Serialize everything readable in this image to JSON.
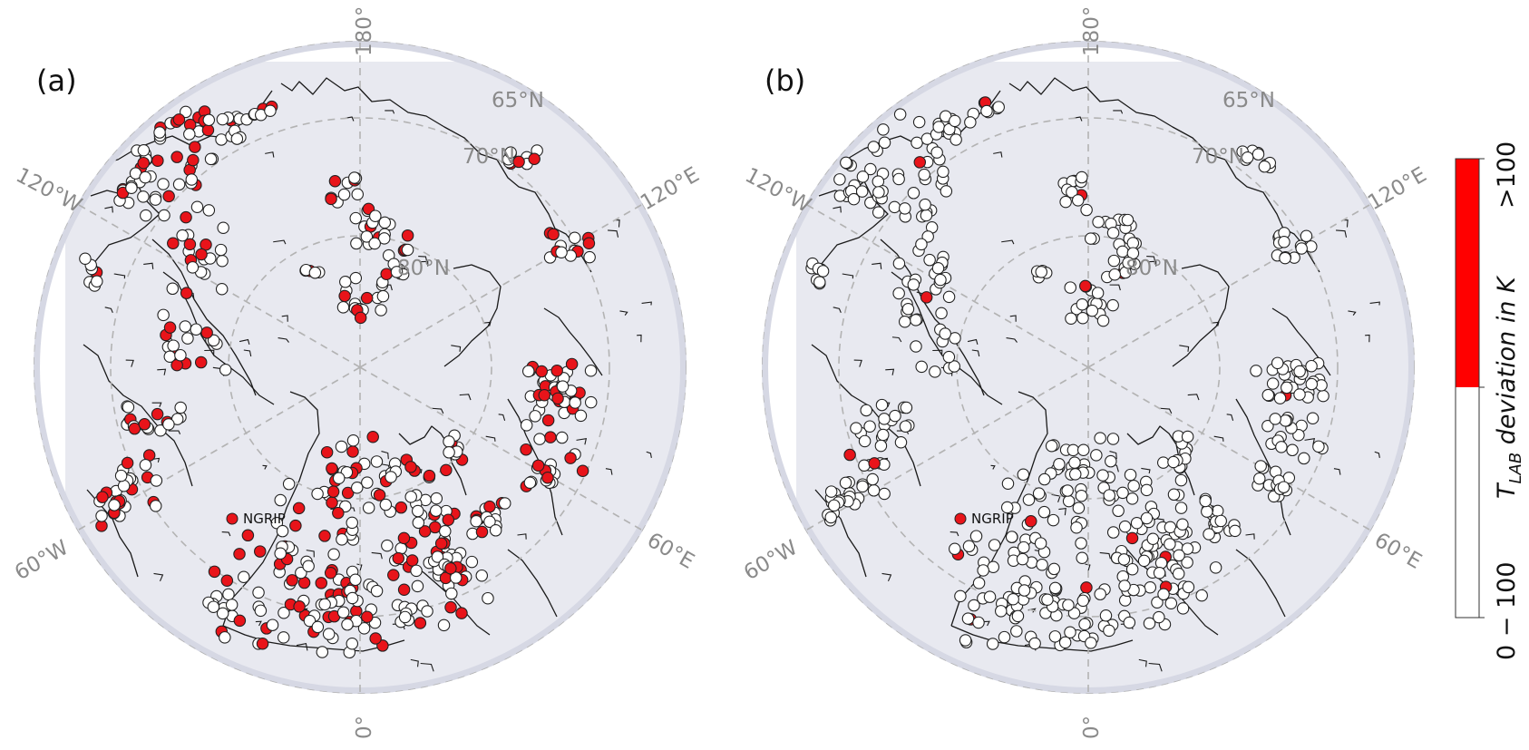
{
  "panels": [
    {
      "label": "(a)",
      "lat_labels": [
        "65°N",
        "70°N",
        "80°N"
      ],
      "lon_labels": {
        "top": "180°",
        "bottom": "0°",
        "upper_left": "120°W",
        "upper_right": "120°E",
        "lower_left": "60°W",
        "lower_right": "60°E"
      },
      "ngrip_label": "NGRIP",
      "red_share": 0.32
    },
    {
      "label": "(b)",
      "lat_labels": [
        "65°N",
        "70°N",
        "80°N"
      ],
      "lon_labels": {
        "top": "180°",
        "bottom": "0°",
        "upper_left": "120°W",
        "upper_right": "120°E",
        "lower_left": "60°W",
        "lower_right": "60°E"
      },
      "ngrip_label": "NGRIP",
      "red_share": 0.03
    }
  ],
  "colorbar": {
    "title_var": "T",
    "title_sub": "LAB",
    "title_rest": " deviation in K",
    "categories": [
      {
        "label": "0 − 100",
        "color": "#ffffff"
      },
      {
        "label": ">100",
        "color": "#ff0000"
      }
    ]
  },
  "colors": {
    "map_bg": "#e8e9f0",
    "map_rim": "#d6d8e4",
    "graticule": "#b3b3b3",
    "coast": "#1a1a1a",
    "marker_red": "#e8141a",
    "marker_white": "#ffffff",
    "marker_edge": "#222222"
  }
}
